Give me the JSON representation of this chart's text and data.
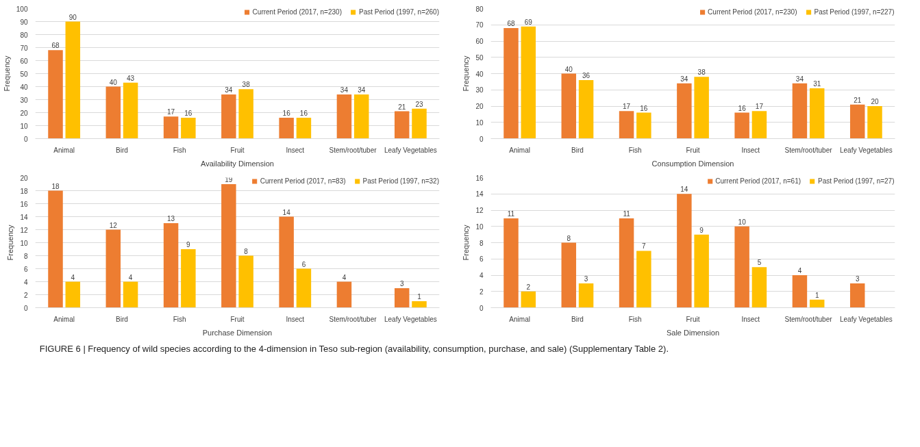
{
  "chart_data": [
    {
      "type": "bar",
      "xlabel": "Availability Dimension",
      "ylabel": "Frequency",
      "categories": [
        "Animal",
        "Bird",
        "Fish",
        "Fruit",
        "Insect",
        "Stem/root/tuber",
        "Leafy Vegetables"
      ],
      "series": [
        {
          "name": "Current Period (2017, n=230)",
          "color": "#ed7d31",
          "values": [
            68,
            40,
            17,
            34,
            16,
            34,
            21
          ]
        },
        {
          "name": "Past Period (1997, n=260)",
          "color": "#ffc000",
          "values": [
            90,
            43,
            16,
            38,
            16,
            34,
            23
          ]
        }
      ],
      "ylim": [
        0,
        100
      ],
      "yticks": [
        0,
        10,
        20,
        30,
        40,
        50,
        60,
        70,
        80,
        90,
        100
      ],
      "grid": "y",
      "legend": "top",
      "data_labels": true
    },
    {
      "type": "bar",
      "xlabel": "Consumption Dimension",
      "ylabel": "Frequency",
      "categories": [
        "Animal",
        "Bird",
        "Fish",
        "Fruit",
        "Insect",
        "Stem/root/tuber",
        "Leafy Vegetables"
      ],
      "series": [
        {
          "name": "Current Period (2017, n=230)",
          "color": "#ed7d31",
          "values": [
            68,
            40,
            17,
            34,
            16,
            34,
            21
          ]
        },
        {
          "name": "Past Period (1997, n=227)",
          "color": "#ffc000",
          "values": [
            69,
            36,
            16,
            38,
            17,
            31,
            20
          ]
        }
      ],
      "ylim": [
        0,
        80
      ],
      "yticks": [
        0,
        10,
        20,
        30,
        40,
        50,
        60,
        70,
        80
      ],
      "grid": "y",
      "legend": "top",
      "data_labels": true
    },
    {
      "type": "bar",
      "xlabel": "Purchase Dimension",
      "ylabel": "Frequency",
      "categories": [
        "Animal",
        "Bird",
        "Fish",
        "Fruit",
        "Insect",
        "Stem/root/tuber",
        "Leafy Vegetables"
      ],
      "series": [
        {
          "name": "Current Period (2017, n=83)",
          "color": "#ed7d31",
          "values": [
            18,
            12,
            13,
            19,
            14,
            4,
            3
          ]
        },
        {
          "name": "Past Period (1997, n=32)",
          "color": "#ffc000",
          "values": [
            4,
            4,
            9,
            8,
            6,
            null,
            1
          ]
        }
      ],
      "ylim": [
        0,
        20
      ],
      "yticks": [
        0,
        2,
        4,
        6,
        8,
        10,
        12,
        14,
        16,
        18,
        20
      ],
      "grid": "y",
      "legend": "top",
      "data_labels": true
    },
    {
      "type": "bar",
      "xlabel": "Sale Dimension",
      "ylabel": "Frequency",
      "categories": [
        "Animal",
        "Bird",
        "Fish",
        "Fruit",
        "Insect",
        "Stem/root/tuber",
        "Leafy Vegetables"
      ],
      "series": [
        {
          "name": "Current Period (2017, n=61)",
          "color": "#ed7d31",
          "values": [
            11,
            8,
            11,
            14,
            10,
            4,
            3
          ]
        },
        {
          "name": "Past Period (1997, n=27)",
          "color": "#ffc000",
          "values": [
            2,
            3,
            7,
            9,
            5,
            1,
            null
          ]
        }
      ],
      "ylim": [
        0,
        16
      ],
      "yticks": [
        0,
        2,
        4,
        6,
        8,
        10,
        12,
        14,
        16
      ],
      "grid": "y",
      "legend": "top",
      "data_labels": true,
      "annotations": [
        "FIGURE 6 | Frequency of wild species according to the 4-dimension in Teso sub-region (availability, consumption, purchase, and sale) (Supplementary Table 2)."
      ]
    }
  ]
}
